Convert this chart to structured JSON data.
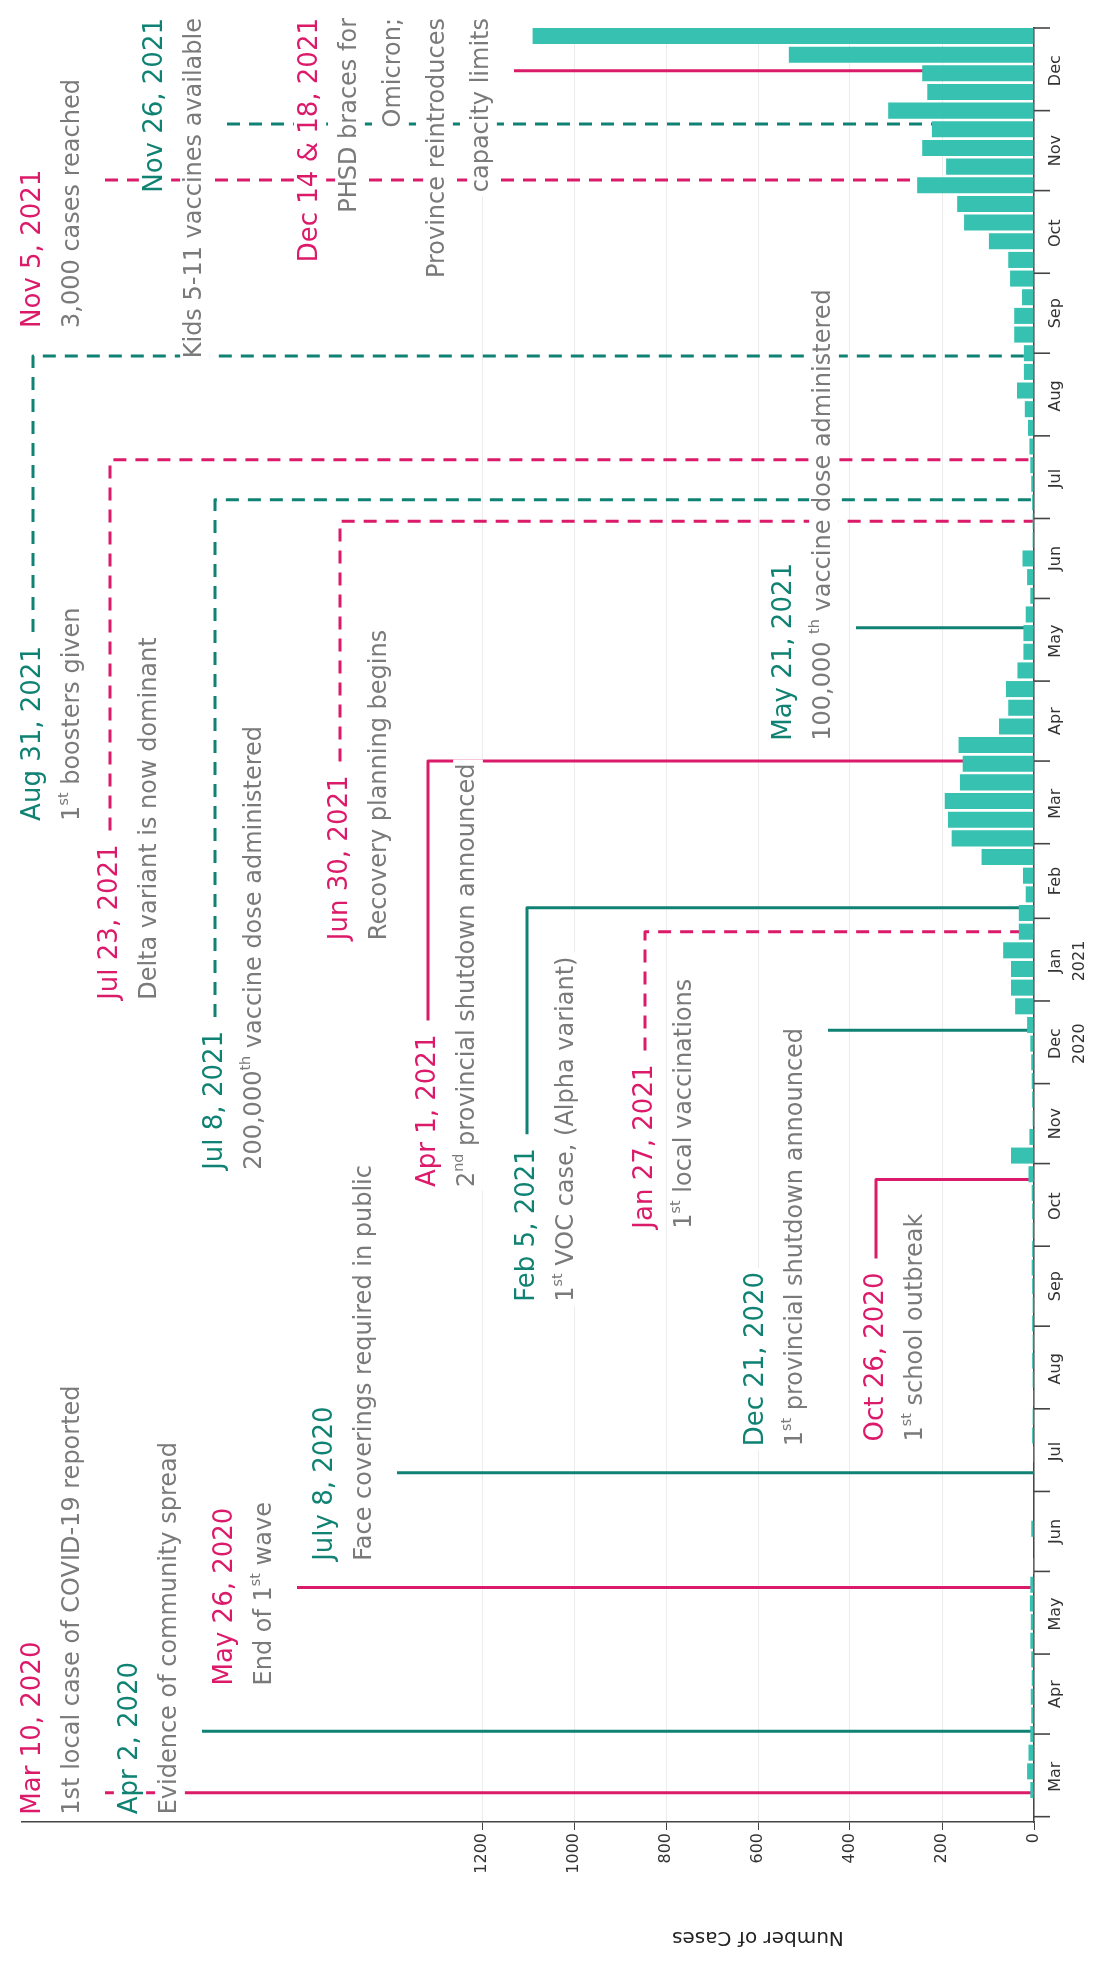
{
  "chart_data": {
    "type": "bar",
    "orientation": "horizontal",
    "xlabel": "Number of Cases",
    "color": "#36c1b0",
    "x": [
      "2020-03-11",
      "2020-03-18",
      "2020-03-25",
      "2020-04-01",
      "2020-04-08",
      "2020-04-15",
      "2020-04-22",
      "2020-04-29",
      "2020-05-06",
      "2020-05-13",
      "2020-05-20",
      "2020-05-27",
      "2020-06-03",
      "2020-06-10",
      "2020-06-17",
      "2020-06-24",
      "2020-07-01",
      "2020-07-08",
      "2020-07-15",
      "2020-07-22",
      "2020-07-29",
      "2020-08-05",
      "2020-08-12",
      "2020-08-19",
      "2020-08-26",
      "2020-09-02",
      "2020-09-09",
      "2020-09-16",
      "2020-09-23",
      "2020-09-30",
      "2020-10-07",
      "2020-10-14",
      "2020-10-21",
      "2020-10-28",
      "2020-11-04",
      "2020-11-11",
      "2020-11-18",
      "2020-11-25",
      "2020-12-02",
      "2020-12-09",
      "2020-12-16",
      "2020-12-23",
      "2020-12-30",
      "2021-01-06",
      "2021-01-13",
      "2021-01-20",
      "2021-01-27",
      "2021-02-03",
      "2021-02-10",
      "2021-02-17",
      "2021-02-24",
      "2021-03-03",
      "2021-03-10",
      "2021-03-17",
      "2021-03-24",
      "2021-03-31",
      "2021-04-07",
      "2021-04-14",
      "2021-04-21",
      "2021-04-28",
      "2021-05-05",
      "2021-05-12",
      "2021-05-19",
      "2021-05-26",
      "2021-06-02",
      "2021-06-09",
      "2021-06-16",
      "2021-06-23",
      "2021-06-30",
      "2021-07-07",
      "2021-07-14",
      "2021-07-21",
      "2021-07-28",
      "2021-08-04",
      "2021-08-11",
      "2021-08-18",
      "2021-08-25",
      "2021-09-01",
      "2021-09-08",
      "2021-09-15",
      "2021-09-22",
      "2021-09-29",
      "2021-10-06",
      "2021-10-13",
      "2021-10-20",
      "2021-10-27",
      "2021-11-03",
      "2021-11-10",
      "2021-11-17",
      "2021-11-24",
      "2021-12-01",
      "2021-12-08",
      "2021-12-15",
      "2021-12-22",
      "2021-12-29"
    ],
    "values": [
      8,
      15,
      12,
      8,
      6,
      7,
      5,
      6,
      8,
      7,
      9,
      8,
      2,
      1,
      6,
      1,
      1,
      1,
      2,
      4,
      3,
      2,
      3,
      4,
      3,
      4,
      3,
      4,
      5,
      4,
      3,
      4,
      5,
      12,
      50,
      10,
      3,
      4,
      5,
      6,
      8,
      15,
      41,
      50,
      50,
      67,
      33,
      33,
      18,
      24,
      114,
      179,
      187,
      194,
      161,
      155,
      164,
      76,
      56,
      61,
      36,
      23,
      23,
      18,
      8,
      15,
      25,
      3,
      3,
      4,
      6,
      8,
      10,
      13,
      20,
      37,
      22,
      22,
      43,
      43,
      26,
      52,
      56,
      98,
      152,
      167,
      254,
      191,
      243,
      222,
      317,
      232,
      243,
      533,
      1090
    ],
    "ylim": [
      "2020-02-28",
      "2022-01-01"
    ],
    "yticks": [
      {
        "value": "2020-03-01",
        "label": null
      },
      {
        "value": "2020-03-16",
        "label": "Mar"
      },
      {
        "value": "2020-04-01",
        "label": null
      },
      {
        "value": "2020-04-16",
        "label": "Apr"
      },
      {
        "value": "2020-05-01",
        "label": null
      },
      {
        "value": "2020-05-16",
        "label": "May"
      },
      {
        "value": "2020-06-01",
        "label": null
      },
      {
        "value": "2020-06-16",
        "label": "Jun"
      },
      {
        "value": "2020-07-01",
        "label": null
      },
      {
        "value": "2020-07-16",
        "label": "Jul"
      },
      {
        "value": "2020-08-01",
        "label": null
      },
      {
        "value": "2020-08-16",
        "label": "Aug"
      },
      {
        "value": "2020-09-01",
        "label": null
      },
      {
        "value": "2020-09-16",
        "label": "Sep"
      },
      {
        "value": "2020-10-01",
        "label": null
      },
      {
        "value": "2020-10-16",
        "label": "Oct"
      },
      {
        "value": "2020-11-01",
        "label": null
      },
      {
        "value": "2020-11-16",
        "label": "Nov"
      },
      {
        "value": "2020-12-01",
        "label": null
      },
      {
        "value": "2020-12-16",
        "label": "Dec\n2020"
      },
      {
        "value": "2021-01-01",
        "label": null
      },
      {
        "value": "2021-01-16",
        "label": "Jan\n2021"
      },
      {
        "value": "2021-02-01",
        "label": null
      },
      {
        "value": "2021-02-15",
        "label": "Feb"
      },
      {
        "value": "2021-03-01",
        "label": null
      },
      {
        "value": "2021-03-16",
        "label": "Mar"
      },
      {
        "value": "2021-04-01",
        "label": null
      },
      {
        "value": "2021-04-16",
        "label": "Apr"
      },
      {
        "value": "2021-05-01",
        "label": null
      },
      {
        "value": "2021-05-16",
        "label": "May"
      },
      {
        "value": "2021-06-01",
        "label": null
      },
      {
        "value": "2021-06-16",
        "label": "Jun"
      },
      {
        "value": "2021-07-01",
        "label": null
      },
      {
        "value": "2021-07-16",
        "label": "Jul"
      },
      {
        "value": "2021-08-01",
        "label": null
      },
      {
        "value": "2021-08-16",
        "label": "Aug"
      },
      {
        "value": "2021-09-01",
        "label": null
      },
      {
        "value": "2021-09-16",
        "label": "Sep"
      },
      {
        "value": "2021-10-01",
        "label": null
      },
      {
        "value": "2021-10-16",
        "label": "Oct"
      },
      {
        "value": "2021-11-01",
        "label": null
      },
      {
        "value": "2021-11-16",
        "label": "Nov"
      },
      {
        "value": "2021-12-01",
        "label": null
      },
      {
        "value": "2021-12-16",
        "label": "Dec"
      },
      {
        "value": "2022-01-01",
        "label": null
      }
    ],
    "xlim": [
      2200,
      0
    ],
    "xticks": [
      0,
      200,
      400,
      600,
      800,
      1000,
      1200
    ],
    "grid": "x",
    "ref_lines": [
      {
        "axis": "y",
        "value": "2020-03-10",
        "label": "Mar 10, 2020",
        "color": "#dc1a6a",
        "line_style": "solid"
      },
      {
        "axis": "y",
        "value": "2020-04-02",
        "label": "Apr 2, 2020",
        "color": "#0f8273",
        "line_style": "solid"
      },
      {
        "axis": "y",
        "value": "2020-05-26",
        "label": "May 26, 2020",
        "color": "#dc1a6a",
        "line_style": "solid"
      },
      {
        "axis": "y",
        "value": "2020-07-08",
        "label": "July 8, 2020",
        "color": "#0f8273",
        "line_style": "solid"
      },
      {
        "axis": "y",
        "value": "2020-10-26",
        "label": "Oct 26, 2020",
        "color": "#dc1a6a",
        "line_style": "solid"
      },
      {
        "axis": "y",
        "value": "2020-12-21",
        "label": "Dec 21, 2020",
        "color": "#0f8273",
        "line_style": "solid"
      },
      {
        "axis": "y",
        "value": "2021-01-27",
        "label": "Jan 27, 2021",
        "color": "#dc1a6a",
        "line_style": "dashed"
      },
      {
        "axis": "y",
        "value": "2021-02-05",
        "label": "Feb 5, 2021",
        "color": "#0f8273",
        "line_style": "solid"
      },
      {
        "axis": "y",
        "value": "2021-04-01",
        "label": "Apr 1, 2021",
        "color": "#dc1a6a",
        "line_style": "solid"
      },
      {
        "axis": "y",
        "value": "2021-05-21",
        "label": "May 21, 2021",
        "color": "#0f8273",
        "line_style": "solid"
      },
      {
        "axis": "y",
        "value": "2021-06-30",
        "label": "Jun 30, 2021",
        "color": "#dc1a6a",
        "line_style": "dashed"
      },
      {
        "axis": "y",
        "value": "2021-07-08",
        "label": "Jul 8, 2021",
        "color": "#0f8273",
        "line_style": "dashed"
      },
      {
        "axis": "y",
        "value": "2021-07-23",
        "label": "Jul 23, 2021",
        "color": "#dc1a6a",
        "line_style": "dashed"
      },
      {
        "axis": "y",
        "value": "2021-08-31",
        "label": "Aug 31, 2021",
        "color": "#0f8273",
        "line_style": "dashed"
      },
      {
        "axis": "y",
        "value": "2021-11-05",
        "label": "Nov 5, 2021",
        "color": "#dc1a6a",
        "line_style": "dashed"
      },
      {
        "axis": "y",
        "value": "2021-11-26",
        "label": "Nov 26, 2021",
        "color": "#0f8273",
        "line_style": "dashed"
      },
      {
        "axis": "y",
        "value": "2021-12-16",
        "label": "Dec 14 & 18, 2021",
        "color": "#dc1a6a",
        "line_style": "solid"
      }
    ],
    "annotations": [
      "1st local case of COVID-19 reported",
      "Evidence of community spread",
      "End of 1$^{st}$ wave",
      "Face coverings required in public",
      "1$^{st}$ school outbreak",
      "1$^{st}$ provincial shutdown announced",
      "1$^{st}$ local vaccinations",
      "1$^{st}$ VOC case, (Alpha variant)",
      "2$^{nd}$ provincial shutdown announced",
      "100,000 $^{th}$ vaccine dose administered",
      "Recovery planning begins",
      "200,000$^{th}$ vaccine dose administered",
      "Delta variant is now dominant",
      "1$^{st}$ boosters given",
      "3,000 cases reached",
      "Kids 5-11 vaccines available",
      "PHSD braces for\nOmicron;\nProvince reintroduces\ncapacity limits"
    ]
  }
}
